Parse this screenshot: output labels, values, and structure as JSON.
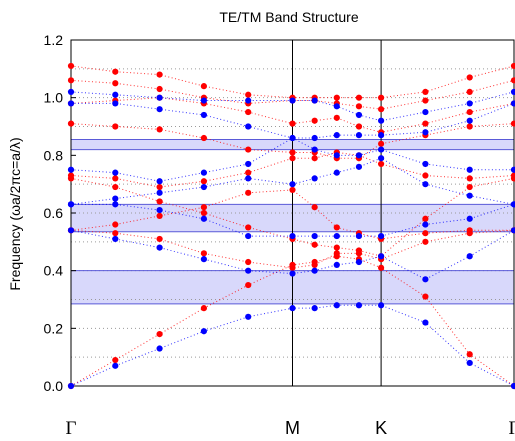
{
  "chart_data": {
    "type": "scatter",
    "title": "TE/TM Band Structure",
    "ylabel": "Frequency (ωa/2πc=a/λ)",
    "xlabel": "",
    "ylim": [
      0,
      1.2
    ],
    "yticks": [
      0.0,
      0.2,
      0.4,
      0.6,
      0.8,
      1.0,
      1.2
    ],
    "ytick_labels": [
      "0.0",
      "0.2",
      "0.4",
      "0.6",
      "0.8",
      "1.0",
      "1.2"
    ],
    "grid": "dotted horizontal at 0.1 steps",
    "x_symmetry_points": [
      {
        "label": "Γ",
        "x": 0
      },
      {
        "label": "M",
        "x": 0.5
      },
      {
        "label": "K",
        "x": 0.7
      },
      {
        "label": "Γ",
        "x": 1.0
      }
    ],
    "band_gaps": [
      {
        "min": 0.285,
        "max": 0.4
      },
      {
        "min": 0.535,
        "max": 0.63
      },
      {
        "min": 0.82,
        "max": 0.855
      }
    ],
    "x": [
      0,
      0.1,
      0.2,
      0.3,
      0.4,
      0.5,
      0.55,
      0.6,
      0.65,
      0.7,
      0.8,
      0.9,
      1.0
    ],
    "series": [
      {
        "name": "TE",
        "color": "#ff0000",
        "bands": [
          [
            0.0,
            0.09,
            0.18,
            0.27,
            0.35,
            0.42,
            0.43,
            0.45,
            0.44,
            0.41,
            0.31,
            0.11,
            0.0
          ],
          [
            0.54,
            0.53,
            0.51,
            0.46,
            0.43,
            0.41,
            0.42,
            0.46,
            0.46,
            0.44,
            0.5,
            0.53,
            0.54
          ],
          [
            0.54,
            0.56,
            0.59,
            0.62,
            0.67,
            0.68,
            0.62,
            0.55,
            0.53,
            0.51,
            0.53,
            0.54,
            0.54
          ],
          [
            0.72,
            0.69,
            0.64,
            0.6,
            0.55,
            0.51,
            0.49,
            0.48,
            0.47,
            0.45,
            0.58,
            0.69,
            0.72
          ],
          [
            0.73,
            0.72,
            0.69,
            0.71,
            0.74,
            0.79,
            0.79,
            0.81,
            0.8,
            0.77,
            0.73,
            0.72,
            0.73
          ],
          [
            0.91,
            0.9,
            0.89,
            0.86,
            0.82,
            0.81,
            0.81,
            0.79,
            0.79,
            0.84,
            0.87,
            0.9,
            0.91
          ],
          [
            0.98,
            0.99,
            1.0,
            0.98,
            0.95,
            0.91,
            0.92,
            0.93,
            0.9,
            0.88,
            0.91,
            0.95,
            0.98
          ],
          [
            1.06,
            1.05,
            1.03,
            1.0,
            0.98,
            0.99,
            0.99,
            0.98,
            0.97,
            0.96,
            0.99,
            1.02,
            1.06
          ],
          [
            1.11,
            1.09,
            1.08,
            1.04,
            1.01,
            1.0,
            1.0,
            1.0,
            1.0,
            1.0,
            1.02,
            1.07,
            1.11
          ]
        ]
      },
      {
        "name": "TM",
        "color": "#0000ff",
        "bands": [
          [
            0.0,
            0.07,
            0.13,
            0.19,
            0.24,
            0.27,
            0.27,
            0.28,
            0.28,
            0.28,
            0.22,
            0.08,
            0.0
          ],
          [
            0.54,
            0.51,
            0.48,
            0.44,
            0.4,
            0.39,
            0.4,
            0.42,
            0.43,
            0.45,
            0.37,
            0.45,
            0.54
          ],
          [
            0.63,
            0.63,
            0.61,
            0.58,
            0.52,
            0.52,
            0.52,
            0.52,
            0.52,
            0.52,
            0.56,
            0.58,
            0.63
          ],
          [
            0.63,
            0.65,
            0.67,
            0.69,
            0.72,
            0.7,
            0.72,
            0.74,
            0.76,
            0.79,
            0.7,
            0.66,
            0.63
          ],
          [
            0.75,
            0.74,
            0.71,
            0.74,
            0.77,
            0.86,
            0.82,
            0.8,
            0.8,
            0.82,
            0.77,
            0.75,
            0.75
          ],
          [
            0.98,
            0.98,
            0.96,
            0.94,
            0.9,
            0.86,
            0.86,
            0.87,
            0.87,
            0.87,
            0.88,
            0.92,
            0.98
          ],
          [
            1.02,
            1.01,
            1.0,
            0.99,
            0.99,
            0.99,
            0.99,
            0.97,
            0.94,
            0.92,
            0.95,
            0.98,
            1.02
          ]
        ]
      }
    ]
  }
}
